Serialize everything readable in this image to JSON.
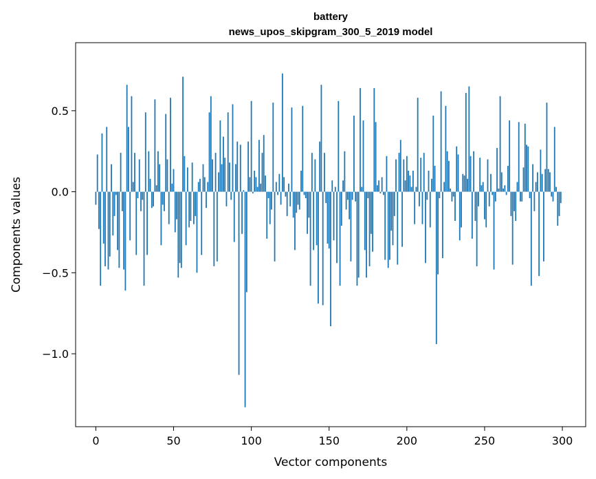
{
  "chart_data": {
    "type": "bar",
    "title": "battery",
    "subtitle": "news_upos_skipgram_300_5_2019 model",
    "xlabel": "Vector components",
    "ylabel": "Components values",
    "xlim": [
      -13,
      315
    ],
    "ylim": [
      -1.45,
      0.92
    ],
    "xticks": [
      0,
      50,
      100,
      150,
      200,
      250,
      300
    ],
    "xtick_labels": [
      "0",
      "50",
      "100",
      "150",
      "200",
      "250",
      "300"
    ],
    "yticks": [
      -1.0,
      -0.5,
      0.0,
      0.5
    ],
    "ytick_labels": [
      "−1.0",
      "−0.5",
      "0.0",
      "0.5"
    ],
    "grid": false,
    "bar_color": "#1f77b4",
    "x_start": 0,
    "values": [
      -0.08,
      0.23,
      -0.23,
      -0.58,
      0.36,
      -0.32,
      -0.46,
      0.4,
      -0.48,
      -0.4,
      0.17,
      -0.27,
      -0.15,
      -0.02,
      -0.36,
      -0.47,
      0.24,
      -0.12,
      -0.48,
      -0.61,
      0.66,
      0.4,
      -0.3,
      0.59,
      0.06,
      0.24,
      -0.39,
      -0.04,
      0.2,
      -0.12,
      -0.05,
      -0.58,
      0.49,
      -0.39,
      0.25,
      0.08,
      -0.1,
      -0.09,
      0.57,
      0.04,
      0.25,
      0.17,
      -0.33,
      -0.08,
      -0.12,
      0.48,
      0.2,
      -0.2,
      0.58,
      0.05,
      0.14,
      -0.25,
      -0.17,
      -0.53,
      -0.44,
      -0.47,
      0.71,
      0.22,
      -0.33,
      0.15,
      -0.22,
      -0.18,
      0.18,
      -0.2,
      -0.15,
      -0.5,
      0.06,
      0.08,
      -0.39,
      0.17,
      0.09,
      -0.1,
      0.06,
      0.49,
      0.59,
      0.2,
      -0.46,
      0.24,
      -0.43,
      0.12,
      0.44,
      0.17,
      0.34,
      0.21,
      -0.09,
      0.49,
      0.18,
      -0.05,
      0.54,
      -0.31,
      0.17,
      0.31,
      -1.13,
      0.29,
      -0.26,
      0.01,
      -1.33,
      -0.62,
      0.31,
      0.09,
      0.56,
      -0.01,
      0.13,
      0.09,
      0.03,
      0.32,
      0.05,
      0.24,
      0.35,
      0.1,
      -0.29,
      -0.04,
      -0.2,
      -0.11,
      0.55,
      -0.43,
      0.06,
      -0.02,
      0.11,
      -0.08,
      0.73,
      0.09,
      -0.03,
      -0.15,
      0.05,
      -0.09,
      0.52,
      -0.16,
      -0.36,
      -0.13,
      -0.08,
      -0.11,
      0.13,
      0.53,
      -0.02,
      -0.04,
      -0.26,
      -0.16,
      -0.58,
      0.24,
      -0.36,
      0.2,
      -0.33,
      -0.69,
      0.31,
      0.66,
      -0.7,
      0.24,
      -0.07,
      -0.32,
      -0.35,
      -0.83,
      0.07,
      -0.3,
      0.03,
      -0.44,
      0.56,
      -0.58,
      -0.21,
      0.07,
      0.25,
      -0.11,
      -0.05,
      -0.17,
      -0.43,
      -0.05,
      0.47,
      -0.06,
      -0.58,
      -0.53,
      0.64,
      0.03,
      0.44,
      -0.36,
      -0.53,
      -0.04,
      -0.46,
      -0.26,
      -0.37,
      0.64,
      0.43,
      0.04,
      0.07,
      -0.01,
      0.09,
      -0.02,
      -0.42,
      0.22,
      -0.47,
      -0.42,
      -0.24,
      -0.33,
      -0.15,
      0.2,
      -0.45,
      0.24,
      0.32,
      -0.34,
      0.2,
      0.07,
      0.22,
      0.13,
      0.1,
      0.03,
      0.13,
      -0.2,
      0.03,
      0.58,
      -0.09,
      0.21,
      -0.2,
      0.24,
      -0.44,
      -0.05,
      0.13,
      -0.22,
      0.08,
      0.47,
      0.16,
      -0.94,
      -0.51,
      -0.04,
      0.62,
      -0.41,
      0.06,
      0.53,
      0.25,
      0.19,
      0.02,
      -0.06,
      -0.03,
      -0.18,
      0.28,
      0.23,
      -0.3,
      -0.22,
      0.11,
      0.1,
      0.61,
      0.08,
      0.65,
      0.22,
      -0.29,
      0.25,
      -0.18,
      -0.46,
      -0.09,
      0.21,
      0.04,
      0.06,
      -0.17,
      -0.22,
      0.2,
      -0.09,
      0.11,
      -0.02,
      -0.48,
      -0.06,
      0.27,
      0.02,
      0.59,
      0.12,
      0.02,
      0.04,
      -0.02,
      0.16,
      0.44,
      -0.15,
      -0.45,
      -0.12,
      -0.18,
      0.06,
      0.43,
      -0.06,
      -0.06,
      0.15,
      0.42,
      0.29,
      0.28,
      -0.04,
      -0.58,
      0.17,
      -0.12,
      0.06,
      0.12,
      -0.52,
      0.26,
      0.11,
      -0.43,
      0.14,
      0.55,
      0.14,
      0.12,
      -0.03,
      -0.06,
      0.4,
      0.03,
      -0.21,
      -0.15,
      -0.07
    ]
  }
}
